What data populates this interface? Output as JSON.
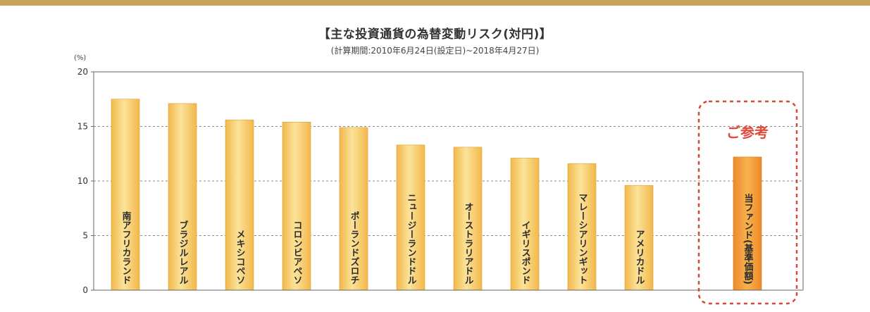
{
  "chart_data": {
    "type": "bar",
    "title": "【主な投資通貨の為替変動リスク(対円)】",
    "subtitle": "(計算期間:2010年6月24日(設定日)~2018年4月27日)",
    "ylabel": "(%)",
    "ylim": [
      0,
      20
    ],
    "yticks": [
      0,
      5,
      10,
      15,
      20
    ],
    "grid": true,
    "categories": [
      "南アフリカランド",
      "ブラジルレアル",
      "メキシコペソ",
      "コロンビアペソ",
      "ポーランドズロチ",
      "ニュージーランドドル",
      "オーストラリアドル",
      "イギリスポンド",
      "マレーシアリンギット",
      "アメリカドル",
      "当ファンド(基準価額)"
    ],
    "values": [
      17.5,
      17.1,
      15.6,
      15.4,
      14.9,
      13.3,
      13.1,
      12.1,
      11.6,
      9.6,
      12.2
    ],
    "reference_label": "ご参考",
    "colors": {
      "bar_main": "#f2b84a",
      "bar_light": "#fbe39a",
      "bar_reference": "#ee8a2a",
      "reference_text": "#e04a3a",
      "reference_border": "#d9463b",
      "grid": "#888888",
      "axis": "#666666"
    }
  }
}
